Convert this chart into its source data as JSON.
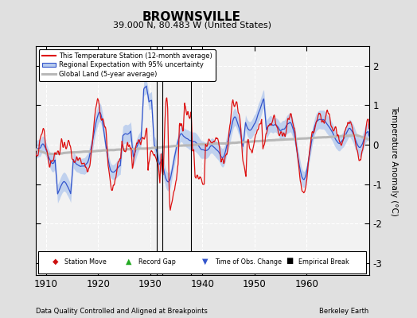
{
  "title": "BROWNSVILLE",
  "subtitle": "39.000 N, 80.483 W (United States)",
  "footer_left": "Data Quality Controlled and Aligned at Breakpoints",
  "footer_right": "Berkeley Earth",
  "ylabel": "Temperature Anomaly (°C)",
  "xlim": [
    1908,
    1972
  ],
  "ylim": [
    -3.3,
    2.5
  ],
  "yticks": [
    -3,
    -2,
    -1,
    0,
    1,
    2
  ],
  "xticks": [
    1910,
    1920,
    1930,
    1940,
    1950,
    1960
  ],
  "background_color": "#e0e0e0",
  "plot_bg_color": "#f2f2f2",
  "grid_color": "#ffffff",
  "empirical_breaks": [
    1931.2,
    1932.3,
    1937.8
  ],
  "uncertainty_color": "#b8ccee",
  "regional_color": "#3355cc",
  "station_color": "#dd1111",
  "global_color": "#b8b8b8",
  "seed": 12345
}
